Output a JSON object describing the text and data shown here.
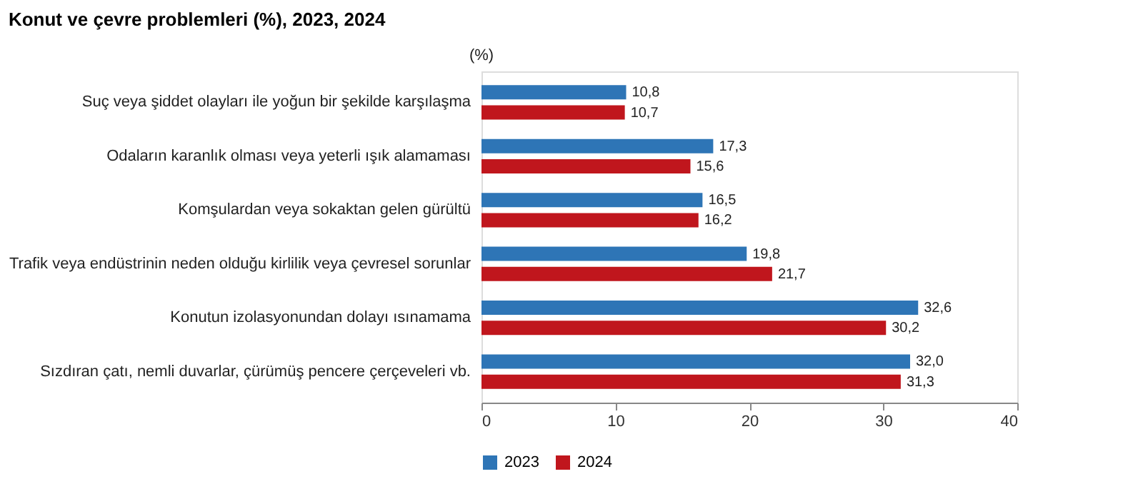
{
  "chart_data": {
    "type": "bar",
    "orientation": "horizontal",
    "title": "Konut ve çevre problemleri (%), 2023, 2024",
    "xlabel": "(%)",
    "categories": [
      "Suç veya şiddet olayları ile yoğun bir şekilde karşılaşma",
      "Odaların karanlık olması veya yeterli ışık alamaması",
      "Komşulardan veya sokaktan gelen gürültü",
      "Trafik veya endüstrinin neden olduğu kirlilik veya çevresel sorunlar",
      "Konutun izolasyonundan dolayı ısınamama",
      "Sızdıran çatı, nemli duvarlar, çürümüş pencere çerçeveleri vb."
    ],
    "series": [
      {
        "name": "2023",
        "color": "#2e75b6",
        "values": [
          10.8,
          17.3,
          16.5,
          19.8,
          32.6,
          32.0
        ],
        "value_labels": [
          "10,8",
          "17,3",
          "16,5",
          "19,8",
          "32,6",
          "32,0"
        ]
      },
      {
        "name": "2024",
        "color": "#c0161d",
        "values": [
          10.7,
          15.6,
          16.2,
          21.7,
          30.2,
          31.3
        ],
        "value_labels": [
          "10,7",
          "15,6",
          "16,2",
          "21,7",
          "30,2",
          "31,3"
        ]
      }
    ],
    "xlim": [
      0,
      40
    ],
    "xticks": [
      0,
      10,
      20,
      30,
      40
    ],
    "grid": false,
    "legend": "bottom"
  }
}
